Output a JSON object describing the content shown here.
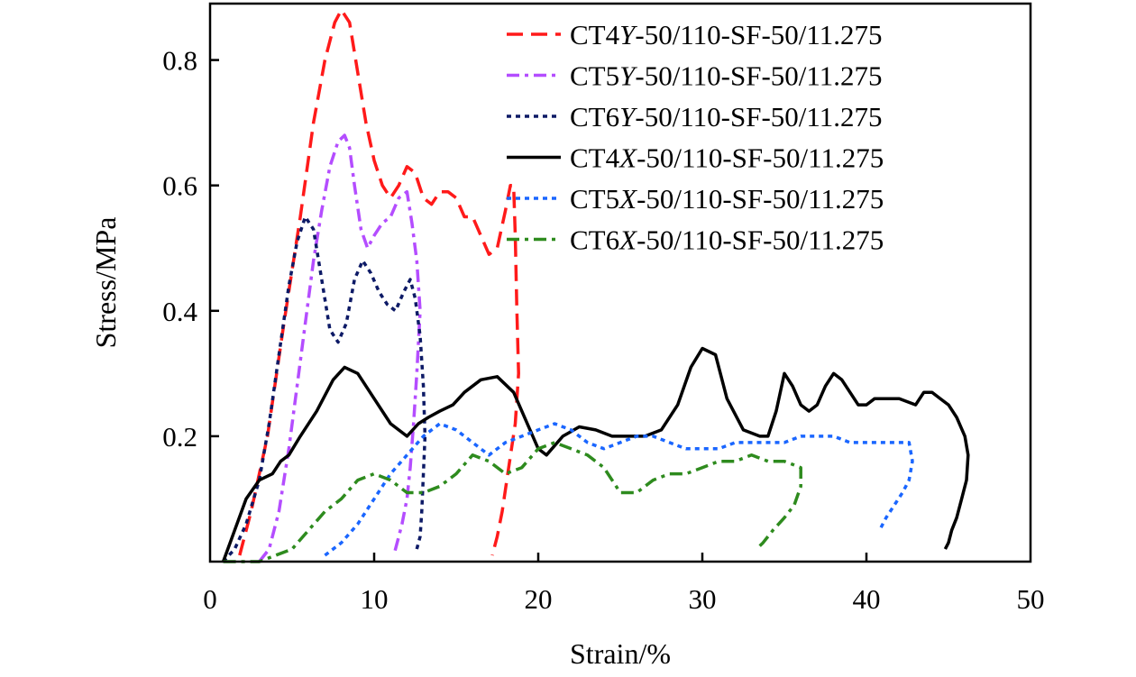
{
  "chart_data": {
    "type": "line",
    "title": "",
    "xlabel": "Strain/%",
    "ylabel": "Stress/MPa",
    "xlim": [
      0,
      50
    ],
    "ylim": [
      0,
      0.89
    ],
    "xticks": [
      0,
      10,
      20,
      30,
      40,
      50
    ],
    "xtick_labels": [
      "0",
      "10",
      "20",
      "30",
      "40",
      "50"
    ],
    "yticks": [
      0.2,
      0.4,
      0.6,
      0.8
    ],
    "ytick_labels": [
      "0.2",
      "0.4",
      "0.6",
      "0.8"
    ],
    "grid": false,
    "legend_position": "top-right",
    "series": [
      {
        "name": "CT4Y-50/110-SF-50/11.275",
        "name_parts": [
          "CT4",
          "Y",
          "-50/110-SF-50/11.275"
        ],
        "color": "#ff1a1a",
        "dash": "dashed",
        "x": [
          1.8,
          2.5,
          3.5,
          4.5,
          5.5,
          6.3,
          7.0,
          7.6,
          8.0,
          8.5,
          9.0,
          9.5,
          10.0,
          10.5,
          11.0,
          11.5,
          12.0,
          12.5,
          13.0,
          13.5,
          14.0,
          14.5,
          15.0,
          15.5,
          16.0,
          16.5,
          17.0,
          17.5,
          18.0,
          18.3,
          18.5,
          18.6,
          18.7,
          18.8,
          18.6,
          18.2,
          17.8,
          17.5,
          17.2
        ],
        "y": [
          0.01,
          0.08,
          0.2,
          0.38,
          0.55,
          0.7,
          0.8,
          0.86,
          0.88,
          0.86,
          0.78,
          0.7,
          0.64,
          0.6,
          0.58,
          0.6,
          0.63,
          0.62,
          0.58,
          0.57,
          0.59,
          0.59,
          0.58,
          0.55,
          0.55,
          0.52,
          0.49,
          0.5,
          0.56,
          0.6,
          0.6,
          0.52,
          0.4,
          0.3,
          0.22,
          0.15,
          0.08,
          0.04,
          0.01
        ]
      },
      {
        "name": "CT5Y-50/110-SF-50/11.275",
        "name_parts": [
          "CT5",
          "Y",
          "-50/110-SF-50/11.275"
        ],
        "color": "#b44dff",
        "dash": "dashdot",
        "x": [
          3.0,
          3.6,
          4.2,
          4.8,
          5.3,
          5.8,
          6.3,
          6.8,
          7.3,
          7.8,
          8.2,
          8.5,
          8.8,
          9.2,
          9.6,
          10.0,
          10.5,
          11.0,
          11.5,
          12.0,
          12.3,
          12.6,
          12.8,
          12.6,
          12.4,
          12.2,
          12.0,
          11.7,
          11.4,
          11.2
        ],
        "y": [
          0.0,
          0.02,
          0.08,
          0.18,
          0.28,
          0.38,
          0.48,
          0.56,
          0.63,
          0.67,
          0.68,
          0.66,
          0.6,
          0.53,
          0.5,
          0.52,
          0.54,
          0.55,
          0.58,
          0.59,
          0.54,
          0.48,
          0.4,
          0.3,
          0.22,
          0.15,
          0.1,
          0.06,
          0.03,
          0.01
        ]
      },
      {
        "name": "CT6Y-50/110-SF-50/11.275",
        "name_parts": [
          "CT6",
          "Y",
          "-50/110-SF-50/11.275"
        ],
        "color": "#0d1a66",
        "dash": "dotted",
        "x": [
          0.8,
          1.5,
          2.2,
          3.0,
          3.6,
          4.2,
          4.8,
          5.3,
          5.8,
          6.3,
          6.8,
          7.3,
          7.8,
          8.3,
          8.8,
          9.3,
          9.8,
          10.3,
          10.8,
          11.3,
          11.8,
          12.2,
          12.5,
          12.8,
          13.0,
          13.1,
          13.0,
          12.9,
          12.8,
          12.6
        ],
        "y": [
          0.0,
          0.02,
          0.06,
          0.13,
          0.22,
          0.33,
          0.44,
          0.51,
          0.55,
          0.53,
          0.45,
          0.37,
          0.35,
          0.38,
          0.45,
          0.48,
          0.46,
          0.43,
          0.41,
          0.4,
          0.43,
          0.45,
          0.42,
          0.36,
          0.28,
          0.2,
          0.14,
          0.08,
          0.04,
          0.02
        ]
      },
      {
        "name": "CT4X-50/110-SF-50/11.275",
        "name_parts": [
          "CT4",
          "X",
          "-50/110-SF-50/11.275"
        ],
        "color": "#000000",
        "dash": "solid",
        "x": [
          0.8,
          1.5,
          2.2,
          3.0,
          3.8,
          4.3,
          4.8,
          5.5,
          6.5,
          7.5,
          8.2,
          9.0,
          10.0,
          11.0,
          12.0,
          12.7,
          13.3,
          14.0,
          14.8,
          15.5,
          16.5,
          17.5,
          18.5,
          19.5,
          20.0,
          20.5,
          21.5,
          22.5,
          23.5,
          24.5,
          25.5,
          26.5,
          27.5,
          28.5,
          29.3,
          30.0,
          30.8,
          31.5,
          32.5,
          33.5,
          34.0,
          34.5,
          35.0,
          35.5,
          36.0,
          36.5,
          37.0,
          37.5,
          38.0,
          38.5,
          39.0,
          39.5,
          40.0,
          40.5,
          41.0,
          42.0,
          43.0,
          43.5,
          44.0,
          44.5,
          45.0,
          45.5,
          46.0,
          46.2,
          46.1,
          45.8,
          45.5,
          45.2,
          45.0,
          44.8
        ],
        "y": [
          0.0,
          0.05,
          0.1,
          0.13,
          0.14,
          0.16,
          0.17,
          0.2,
          0.24,
          0.29,
          0.31,
          0.3,
          0.26,
          0.22,
          0.2,
          0.22,
          0.23,
          0.24,
          0.25,
          0.27,
          0.29,
          0.295,
          0.27,
          0.21,
          0.18,
          0.17,
          0.2,
          0.215,
          0.21,
          0.2,
          0.2,
          0.2,
          0.21,
          0.25,
          0.31,
          0.34,
          0.33,
          0.26,
          0.21,
          0.2,
          0.2,
          0.24,
          0.3,
          0.28,
          0.25,
          0.24,
          0.25,
          0.28,
          0.3,
          0.29,
          0.27,
          0.25,
          0.25,
          0.26,
          0.26,
          0.26,
          0.25,
          0.27,
          0.27,
          0.26,
          0.25,
          0.23,
          0.2,
          0.17,
          0.13,
          0.1,
          0.07,
          0.05,
          0.03,
          0.02
        ]
      },
      {
        "name": "CT5X-50/110-SF-50/11.275",
        "name_parts": [
          "CT5",
          "X",
          "-50/110-SF-50/11.275"
        ],
        "color": "#1a66ff",
        "dash": "dotted",
        "x": [
          7.0,
          8.0,
          9.0,
          10.0,
          11.0,
          12.0,
          13.0,
          14.0,
          15.0,
          16.0,
          17.0,
          18.0,
          19.0,
          20.0,
          21.0,
          22.0,
          23.0,
          24.0,
          25.0,
          26.0,
          27.0,
          28.0,
          29.0,
          30.0,
          31.0,
          32.0,
          33.0,
          34.0,
          35.0,
          36.0,
          37.0,
          38.0,
          39.0,
          40.0,
          41.0,
          42.0,
          42.6,
          42.8,
          42.6,
          42.2,
          41.7,
          41.2,
          40.8
        ],
        "y": [
          0.01,
          0.03,
          0.06,
          0.1,
          0.14,
          0.17,
          0.2,
          0.22,
          0.21,
          0.19,
          0.17,
          0.19,
          0.2,
          0.21,
          0.22,
          0.21,
          0.19,
          0.18,
          0.19,
          0.2,
          0.2,
          0.19,
          0.18,
          0.18,
          0.18,
          0.19,
          0.19,
          0.19,
          0.19,
          0.2,
          0.2,
          0.2,
          0.19,
          0.19,
          0.19,
          0.19,
          0.19,
          0.16,
          0.13,
          0.11,
          0.09,
          0.07,
          0.05
        ]
      },
      {
        "name": "CT6X-50/110-SF-50/11.275",
        "name_parts": [
          "CT6",
          "X",
          "-50/110-SF-50/11.275"
        ],
        "color": "#2e8b1e",
        "dash": "dashdot",
        "x": [
          0.8,
          2.0,
          3.0,
          4.0,
          5.0,
          6.0,
          7.0,
          8.0,
          9.0,
          10.0,
          11.0,
          12.0,
          13.0,
          14.0,
          15.0,
          16.0,
          17.0,
          18.0,
          19.0,
          20.0,
          21.0,
          22.0,
          23.0,
          24.0,
          25.0,
          26.0,
          27.0,
          28.0,
          29.0,
          30.0,
          31.0,
          32.0,
          33.0,
          34.0,
          35.0,
          36.0,
          36.0,
          35.6,
          35.0,
          34.3,
          33.7,
          33.3
        ],
        "y": [
          0.0,
          0.0,
          0.0,
          0.01,
          0.02,
          0.05,
          0.08,
          0.1,
          0.13,
          0.14,
          0.13,
          0.11,
          0.11,
          0.12,
          0.14,
          0.17,
          0.16,
          0.14,
          0.15,
          0.18,
          0.19,
          0.18,
          0.17,
          0.15,
          0.11,
          0.11,
          0.13,
          0.14,
          0.14,
          0.15,
          0.16,
          0.16,
          0.17,
          0.16,
          0.16,
          0.15,
          0.12,
          0.09,
          0.07,
          0.05,
          0.03,
          0.02
        ]
      }
    ]
  }
}
